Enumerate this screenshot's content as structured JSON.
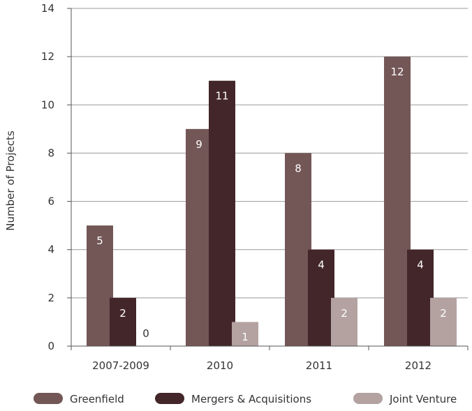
{
  "chart_data": {
    "type": "bar",
    "title": "",
    "xlabel": "",
    "ylabel": "Number of Projects",
    "ylim": [
      0,
      14
    ],
    "yticks": [
      0,
      2,
      4,
      6,
      8,
      10,
      12,
      14
    ],
    "grid": true,
    "legend_position": "bottom",
    "categories": [
      "2007-2009",
      "2010",
      "2011",
      "2012"
    ],
    "series": [
      {
        "name": "Greenfield",
        "color": "#735656",
        "values": [
          5,
          9,
          8,
          12
        ]
      },
      {
        "name": "Mergers & Acquisitions",
        "color": "#43262a",
        "values": [
          2,
          11,
          4,
          4
        ]
      },
      {
        "name": "Joint Venture",
        "color": "#b3a2a0",
        "values": [
          0,
          1,
          2,
          2
        ]
      }
    ],
    "value_labels": [
      [
        "5",
        "9",
        "8",
        "12"
      ],
      [
        "2",
        "11",
        "4",
        "4"
      ],
      [
        "0",
        "1",
        "2",
        "2"
      ]
    ]
  }
}
